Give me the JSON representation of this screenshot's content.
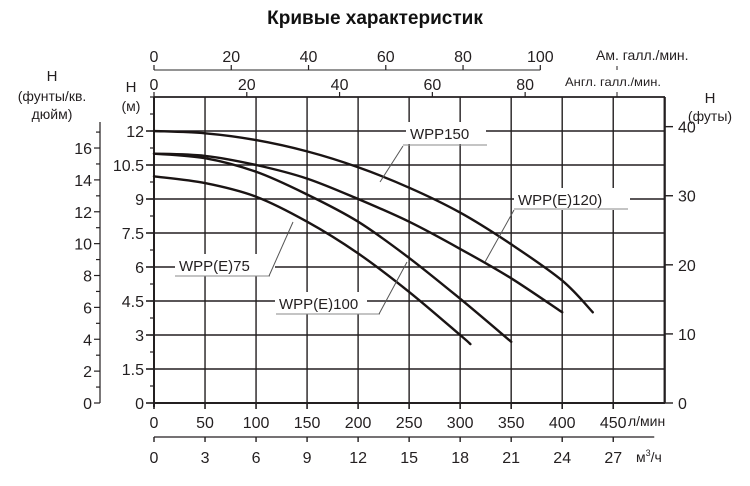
{
  "chart_data": {
    "type": "line",
    "title": "Кривые характеристик",
    "xlabel": "л/мин",
    "xlabel_secondary": "м³/ч",
    "xlabel_top_us": "Ам. галл./мин.",
    "xlabel_top_uk": "Англ. галл./мин.",
    "ylabel": "H (м)",
    "ylabel_left_psi": "H (фунты/кв. дюйм)",
    "ylabel_right_ft": "H (футы)",
    "xlim": [
      0,
      500
    ],
    "ylim": [
      0,
      13.5
    ],
    "grid": true,
    "x_ticks_lpm": [
      0,
      50,
      100,
      150,
      200,
      250,
      300,
      350,
      400,
      450
    ],
    "x_ticks_m3h": [
      0,
      3,
      6,
      9,
      12,
      15,
      18,
      21,
      24,
      27
    ],
    "x_ticks_usgpm": [
      0,
      20,
      40,
      60,
      80,
      100
    ],
    "x_ticks_ukgpm": [
      0,
      20,
      40,
      60,
      80
    ],
    "y_ticks_m": [
      "0",
      "1.5",
      "3",
      "4.5",
      "6",
      "7.5",
      "9",
      "10.5",
      "12"
    ],
    "y_ticks_psi": [
      0,
      2,
      4,
      6,
      8,
      10,
      12,
      14,
      16
    ],
    "y_ticks_ft": [
      0,
      10,
      20,
      30,
      40
    ],
    "series": [
      {
        "name": "WPP150",
        "x": [
          0,
          50,
          100,
          150,
          200,
          250,
          300,
          350,
          400,
          430
        ],
        "y": [
          12.0,
          11.9,
          11.6,
          11.1,
          10.4,
          9.5,
          8.4,
          7.0,
          5.4,
          4.0
        ]
      },
      {
        "name": "WPP(E)120)",
        "x": [
          0,
          50,
          100,
          150,
          200,
          250,
          300,
          350,
          400
        ],
        "y": [
          11.0,
          10.9,
          10.5,
          9.9,
          9.0,
          8.0,
          6.8,
          5.5,
          4.0
        ]
      },
      {
        "name": "WPP(E)100",
        "x": [
          0,
          50,
          100,
          150,
          200,
          250,
          300,
          350
        ],
        "y": [
          11.0,
          10.8,
          10.2,
          9.2,
          8.0,
          6.4,
          4.6,
          2.7
        ]
      },
      {
        "name": "WPP(E)75",
        "x": [
          0,
          50,
          100,
          150,
          200,
          250,
          300,
          310
        ],
        "y": [
          10.0,
          9.7,
          9.1,
          8.0,
          6.6,
          4.9,
          3.0,
          2.6
        ]
      }
    ],
    "annotations": [
      {
        "text": "WPP150",
        "series": "WPP150"
      },
      {
        "text": "WPP(E)120)",
        "series": "WPP(E)120)"
      },
      {
        "text": "WPP(E)100",
        "series": "WPP(E)100"
      },
      {
        "text": "WPP(E)75",
        "series": "WPP(E)75"
      }
    ]
  },
  "labels": {
    "title": "Кривые характеристик",
    "us_gpm": "Ам. галл./мин.",
    "uk_gpm": "Англ. галл./мин.",
    "h": "H",
    "psi_unit_1": "(фунты/кв.",
    "psi_unit_2": "дюйм)",
    "m_unit": "(м)",
    "ft_unit": "(футы)",
    "lpm": "л/мин",
    "m3h_base": "м",
    "m3h_sup": "3",
    "m3h_tail": "/ч"
  }
}
